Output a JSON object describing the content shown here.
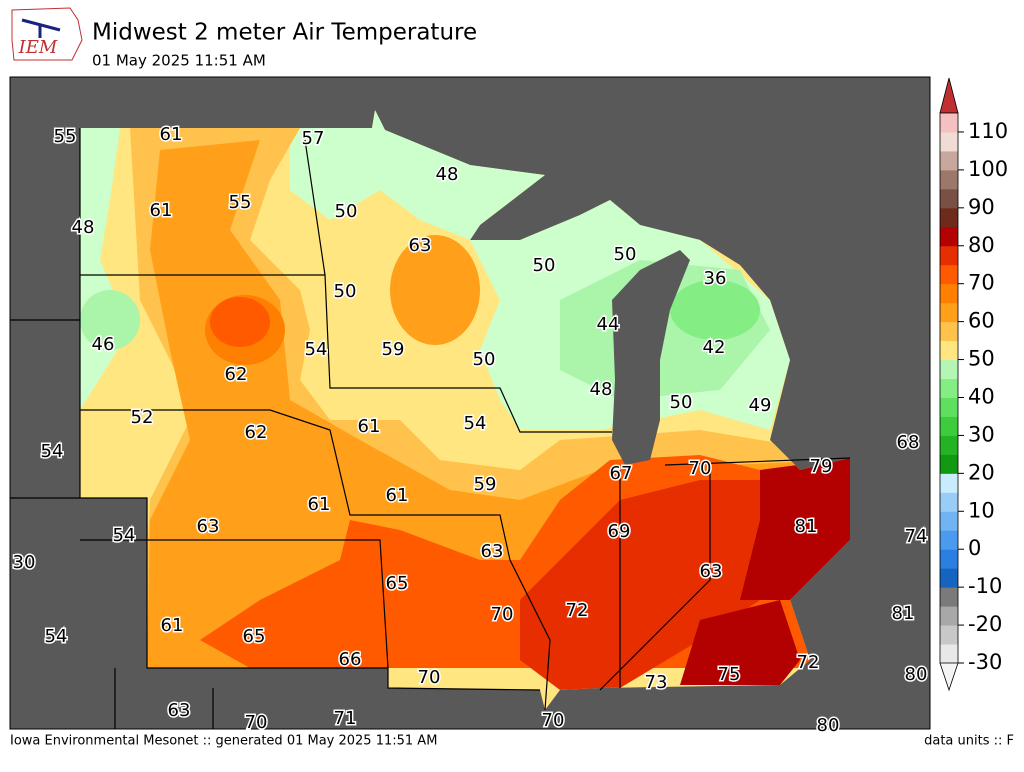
{
  "header": {
    "logo": "IEM",
    "title": "Midwest 2 meter Air Temperature",
    "subtitle": "01 May 2025 11:51 AM"
  },
  "map": {
    "station_values": [
      55,
      61,
      57,
      48,
      61,
      55,
      50,
      48,
      63,
      50,
      50,
      36,
      50,
      46,
      54,
      59,
      44,
      42,
      62,
      50,
      48,
      50,
      49,
      52,
      62,
      61,
      54,
      54,
      68,
      67,
      70,
      79,
      59,
      61,
      61,
      63,
      54,
      69,
      81,
      74,
      30,
      63,
      63,
      65,
      81,
      70,
      72,
      61,
      65,
      54,
      66,
      72,
      80,
      70,
      73,
      75,
      63,
      70,
      71,
      70,
      80
    ]
  },
  "colorbar": {
    "lim": [
      -30,
      115
    ],
    "ticks": [
      -30,
      -20,
      -10,
      0,
      10,
      20,
      30,
      40,
      50,
      60,
      70,
      80,
      90,
      100,
      110
    ],
    "colors": [
      "#e8e8e8",
      "#c8c8c8",
      "#a8a8a8",
      "#7a7a7a",
      "#1565c0",
      "#2a7fe0",
      "#4a9aee",
      "#70b4f4",
      "#98cdf8",
      "#c8ecfc",
      "#129912",
      "#23b323",
      "#3ccc3c",
      "#5ee05e",
      "#84ee84",
      "#b4f7b4",
      "#ffe680",
      "#ffc34d",
      "#ff9f1a",
      "#ff8000",
      "#ff5a00",
      "#e62e00",
      "#b30000",
      "#6e2a1a",
      "#7a5045",
      "#9c786a",
      "#c8a89c",
      "#f0dcd4",
      "#f5c0c0"
    ]
  },
  "footer": {
    "left": "Iowa Environmental Mesonet :: generated 01 May 2025 11:51 AM",
    "right": "data units :: F"
  }
}
